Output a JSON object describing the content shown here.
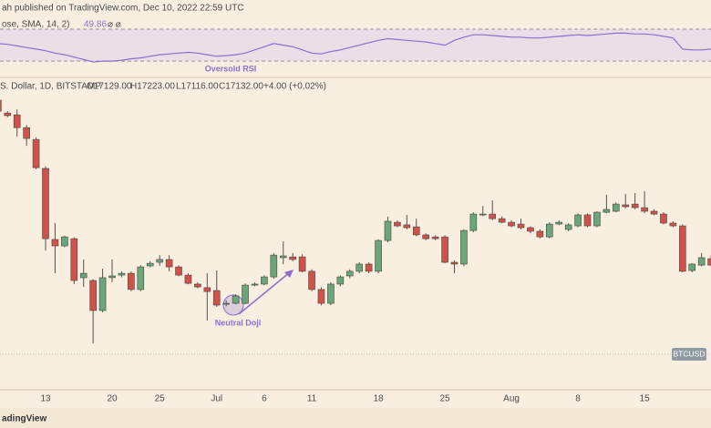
{
  "header": {
    "published": "ah published on TradingView.com, Dec 10, 2022 22:59 UTC",
    "symbol": "S. Dollar, 1D, BITSTAMP",
    "ohlc": [
      "O17129.00",
      "H17223.00",
      "L17116.00",
      "C17132.00",
      "+4.00 (+0.02%)"
    ],
    "price_tag": "BTCUSD",
    "footer": "adingView"
  },
  "chart_data": [
    {
      "type": "candlestick",
      "annotation": "Neutral Doji",
      "up_color": "#6aa67a",
      "down_color": "#d0524c",
      "ylim": [
        15280,
        30890
      ],
      "categories": [
        null,
        null,
        null,
        null,
        null,
        "13",
        null,
        null,
        null,
        null,
        null,
        null,
        "20",
        null,
        null,
        null,
        null,
        "25",
        null,
        null,
        null,
        null,
        null,
        "Jul",
        null,
        null,
        null,
        null,
        "6",
        null,
        null,
        null,
        null,
        "11",
        null,
        null,
        null,
        null,
        null,
        null,
        "18",
        null,
        null,
        null,
        null,
        null,
        null,
        "25",
        null,
        null,
        null,
        null,
        null,
        null,
        "Aug",
        null,
        null,
        null,
        null,
        null,
        null,
        "8",
        null,
        null,
        null,
        null,
        null,
        null,
        "15",
        null,
        null,
        null,
        null,
        null,
        null,
        null
      ],
      "open": [
        29750,
        29110,
        29020,
        28380,
        27790,
        26340,
        22790,
        22470,
        22830,
        20880,
        20740,
        19240,
        20880,
        21010,
        21100,
        20290,
        21470,
        21650,
        21790,
        21420,
        21010,
        20560,
        20380,
        20240,
        19600,
        19600,
        19600,
        20510,
        20560,
        20920,
        21880,
        21920,
        21920,
        21200,
        20290,
        19600,
        20560,
        20970,
        21200,
        21560,
        21200,
        22740,
        23650,
        23520,
        23420,
        23020,
        22920,
        22920,
        21650,
        21560,
        23240,
        24020,
        24060,
        23830,
        23650,
        23560,
        23380,
        23200,
        22920,
        23560,
        23290,
        23470,
        24020,
        23470,
        24150,
        24200,
        24520,
        24560,
        24380,
        24200,
        24060,
        23610,
        23470,
        21240,
        21510,
        21830
      ],
      "high": [
        29900,
        29200,
        29290,
        28500,
        27900,
        26450,
        23610,
        22980,
        22900,
        21790,
        20800,
        21330,
        21790,
        21200,
        21200,
        21500,
        21700,
        22010,
        22010,
        21500,
        21100,
        20650,
        21100,
        21240,
        19750,
        20050,
        20600,
        20650,
        21000,
        22110,
        22700,
        22110,
        22050,
        21300,
        20400,
        20650,
        21000,
        21300,
        21650,
        21650,
        22800,
        23930,
        23750,
        24020,
        23830,
        23100,
        23000,
        23000,
        21750,
        23300,
        24150,
        24470,
        24740,
        23950,
        23750,
        23830,
        23450,
        23300,
        23650,
        23750,
        23600,
        24100,
        24100,
        24200,
        25020,
        24650,
        25060,
        25110,
        25200,
        24300,
        24150,
        23700,
        23550,
        21600,
        22110,
        22000
      ],
      "low": [
        29100,
        28900,
        27930,
        27470,
        26300,
        22240,
        21100,
        22400,
        20560,
        20420,
        17600,
        19150,
        20650,
        20900,
        20200,
        20200,
        21400,
        21470,
        21200,
        20950,
        20550,
        20350,
        18740,
        19420,
        19450,
        19550,
        19550,
        20450,
        20500,
        20830,
        21560,
        21700,
        21150,
        20200,
        19500,
        19500,
        20450,
        20850,
        21100,
        21100,
        21100,
        22650,
        23400,
        23300,
        22950,
        22750,
        22750,
        21600,
        21100,
        21450,
        23150,
        23950,
        23750,
        23600,
        23400,
        23300,
        23100,
        22850,
        22850,
        23500,
        23200,
        23400,
        23400,
        23400,
        24100,
        24150,
        24350,
        24300,
        24100,
        24000,
        23550,
        23400,
        21150,
        21150,
        21450,
        21450
      ],
      "close": [
        29200,
        28980,
        28380,
        27840,
        26380,
        22830,
        22470,
        22920,
        20740,
        21100,
        19240,
        20880,
        20970,
        21100,
        20290,
        21420,
        21600,
        21790,
        21420,
        21010,
        20600,
        20420,
        20190,
        19510,
        19600,
        19970,
        20510,
        20560,
        20920,
        22010,
        21970,
        21790,
        21200,
        20290,
        19600,
        20560,
        20920,
        21200,
        21560,
        21200,
        22740,
        23700,
        23470,
        23380,
        23020,
        22830,
        22830,
        21650,
        21560,
        23240,
        24060,
        24060,
        23830,
        23650,
        23470,
        23380,
        23200,
        22920,
        23560,
        23650,
        23520,
        24020,
        23470,
        24150,
        24290,
        24560,
        24430,
        24380,
        24200,
        24060,
        23610,
        23470,
        21200,
        21560,
        21880,
        21510
      ]
    },
    {
      "type": "line",
      "label": "ose, SMA, 14, 2)",
      "last_value": "49.86",
      "icons": "⌀ ⌀",
      "annotation": "Oversold RSI",
      "color": "#8a6fd1",
      "levels": [
        30,
        70
      ],
      "band_color": "#e9d9e8",
      "ylim": [
        13,
        86
      ],
      "values": [
        52,
        51,
        49,
        47,
        45,
        43,
        40,
        38,
        35,
        32,
        29,
        30,
        30,
        31,
        33,
        34,
        36,
        38,
        39,
        40,
        41,
        40,
        38,
        36,
        37,
        38,
        40,
        44,
        48,
        52,
        50,
        48,
        44,
        40,
        39,
        42,
        44,
        47,
        50,
        53,
        56,
        58,
        57,
        56,
        55,
        54,
        52,
        50,
        56,
        60,
        63,
        63,
        62,
        61,
        60,
        60,
        59,
        59,
        60,
        61,
        62,
        63,
        62,
        63,
        64,
        65,
        65,
        64,
        64,
        63,
        61,
        59,
        45,
        44,
        44,
        45
      ]
    }
  ]
}
